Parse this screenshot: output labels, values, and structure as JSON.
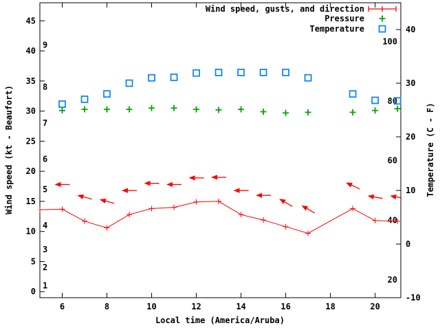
{
  "chart_data": {
    "type": "line",
    "title": "",
    "xlabel": "Local time (America/Aruba)",
    "ylabel_left": "Wind speed (kt - Beaufort)",
    "ylabel_right": "Temperature (C - F)",
    "x_range": [
      5,
      21
    ],
    "x_ticks": [
      6,
      8,
      10,
      12,
      14,
      16,
      18,
      20
    ],
    "left_axis": {
      "unit": "kt",
      "range": [
        -1,
        48
      ],
      "ticks": [
        0,
        5,
        10,
        15,
        20,
        25,
        30,
        35,
        40,
        45
      ]
    },
    "beaufort_scale_labels": [
      {
        "label": "1",
        "kt": 1
      },
      {
        "label": "2",
        "kt": 4
      },
      {
        "label": "3",
        "kt": 7
      },
      {
        "label": "4",
        "kt": 11
      },
      {
        "label": "5",
        "kt": 17
      },
      {
        "label": "6",
        "kt": 22
      },
      {
        "label": "7",
        "kt": 28
      },
      {
        "label": "8",
        "kt": 34
      },
      {
        "label": "9",
        "kt": 41
      }
    ],
    "right_axis": {
      "unit": "C",
      "range": [
        -10,
        45
      ],
      "ticks": [
        -10,
        0,
        10,
        20,
        30,
        40
      ]
    },
    "fahrenheit_labels": [
      20,
      40,
      60,
      80,
      100
    ],
    "legend": [
      {
        "label": "Wind speed, gusts, and direction",
        "marker": "errorbar",
        "color": "#ff0000"
      },
      {
        "label": "Pressure",
        "marker": "plus",
        "color": "#00a400"
      },
      {
        "label": "Temperature",
        "marker": "open-square",
        "color": "#0080ff"
      }
    ],
    "colors": {
      "wind": "#ff0000",
      "pressure": "#00a400",
      "temperature": "#0080ff",
      "axis": "#000000"
    },
    "series": {
      "wind_speed_kt": {
        "x": [
          5,
          6,
          7,
          8,
          9,
          10,
          11,
          12,
          13,
          14,
          15,
          16,
          17,
          19,
          20,
          21
        ],
        "y": [
          13.6,
          13.7,
          11.7,
          10.6,
          12.8,
          13.8,
          14,
          14.9,
          15,
          12.8,
          11.9,
          10.8,
          9.7,
          13.8,
          11.8,
          11.7
        ]
      },
      "wind_gust_kt": {
        "x": [
          6,
          7,
          8,
          9,
          10,
          11,
          12,
          13,
          14,
          15,
          16,
          17,
          19,
          20,
          21
        ],
        "y": [
          17.8,
          15.7,
          15,
          16.8,
          18,
          17.8,
          18.9,
          19,
          16.8,
          16,
          14.8,
          13.7,
          17.6,
          15.7,
          15.7
        ],
        "arrow_tilt_deg": [
          0,
          15,
          15,
          0,
          0,
          0,
          0,
          0,
          0,
          0,
          30,
          30,
          25,
          10,
          10
        ],
        "arrow_points_to": "west (wind from east)"
      },
      "pressure": {
        "note": "no dedicated pressure scale shown; values as read against left axis",
        "x": [
          6,
          7,
          8,
          9,
          10,
          11,
          12,
          13,
          14,
          15,
          16,
          17,
          19,
          20,
          21
        ],
        "y": [
          30.1,
          30.3,
          30.3,
          30.3,
          30.5,
          30.5,
          30.3,
          30.2,
          30.3,
          29.9,
          29.7,
          29.8,
          29.8,
          30.1,
          30.4
        ]
      },
      "temperature_c": {
        "x": [
          6,
          7,
          8,
          9,
          10,
          11,
          12,
          13,
          14,
          15,
          16,
          17,
          19,
          20,
          21
        ],
        "y": [
          26.1,
          27,
          28,
          30,
          31,
          31.1,
          31.9,
          32,
          32,
          32,
          32,
          31,
          28,
          26.8,
          26.7
        ]
      }
    }
  }
}
